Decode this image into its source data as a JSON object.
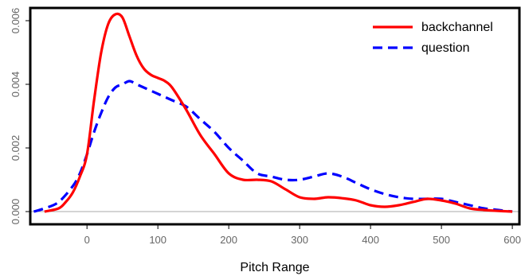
{
  "chart_data": {
    "type": "line",
    "title": "",
    "xlabel": "Pitch Range",
    "ylabel": "",
    "xlim": [
      -80,
      610
    ],
    "ylim": [
      -0.0004,
      0.0064
    ],
    "xticks": [
      "0",
      "100",
      "200",
      "300",
      "400",
      "500",
      "600"
    ],
    "yticks": [
      "0.000",
      "0.002",
      "0.004",
      "0.006"
    ],
    "grid": false,
    "legend_position": "top-right",
    "zero_line": true,
    "series": [
      {
        "name": "backchannel",
        "color": "#ff0000",
        "style": "solid",
        "x": [
          -60,
          -40,
          -30,
          -20,
          -10,
          0,
          10,
          20,
          30,
          40,
          50,
          60,
          70,
          80,
          90,
          100,
          110,
          120,
          140,
          160,
          180,
          200,
          220,
          240,
          260,
          280,
          300,
          320,
          340,
          360,
          380,
          400,
          420,
          440,
          460,
          480,
          500,
          520,
          540,
          560,
          580,
          600
        ],
        "y": [
          0.0,
          0.0001,
          0.0003,
          0.0006,
          0.0011,
          0.0018,
          0.0035,
          0.005,
          0.0059,
          0.0062,
          0.0061,
          0.0055,
          0.0049,
          0.0045,
          0.0043,
          0.0042,
          0.0041,
          0.0039,
          0.0032,
          0.0024,
          0.0018,
          0.0012,
          0.001,
          0.001,
          0.00095,
          0.0007,
          0.00045,
          0.0004,
          0.00045,
          0.00042,
          0.00035,
          0.0002,
          0.00015,
          0.0002,
          0.0003,
          0.0004,
          0.00035,
          0.00025,
          0.0001,
          5e-05,
          2e-05,
          0.0
        ]
      },
      {
        "name": "question",
        "color": "#0000ff",
        "style": "dashed",
        "x": [
          -75,
          -60,
          -40,
          -20,
          -10,
          0,
          10,
          20,
          30,
          40,
          50,
          60,
          70,
          80,
          100,
          120,
          140,
          160,
          180,
          200,
          220,
          240,
          260,
          280,
          300,
          320,
          340,
          360,
          380,
          400,
          420,
          440,
          460,
          480,
          500,
          520,
          540,
          560,
          580,
          600
        ],
        "y": [
          0.0,
          0.0001,
          0.0003,
          0.0008,
          0.0012,
          0.0018,
          0.0025,
          0.0031,
          0.0036,
          0.0039,
          0.004,
          0.0041,
          0.004,
          0.0039,
          0.0037,
          0.0035,
          0.0033,
          0.0029,
          0.0025,
          0.002,
          0.0016,
          0.0012,
          0.0011,
          0.001,
          0.001,
          0.0011,
          0.0012,
          0.0011,
          0.0009,
          0.0007,
          0.00055,
          0.00045,
          0.0004,
          0.0004,
          0.0004,
          0.0003,
          0.0002,
          0.0001,
          5e-05,
          0.0
        ]
      }
    ]
  }
}
